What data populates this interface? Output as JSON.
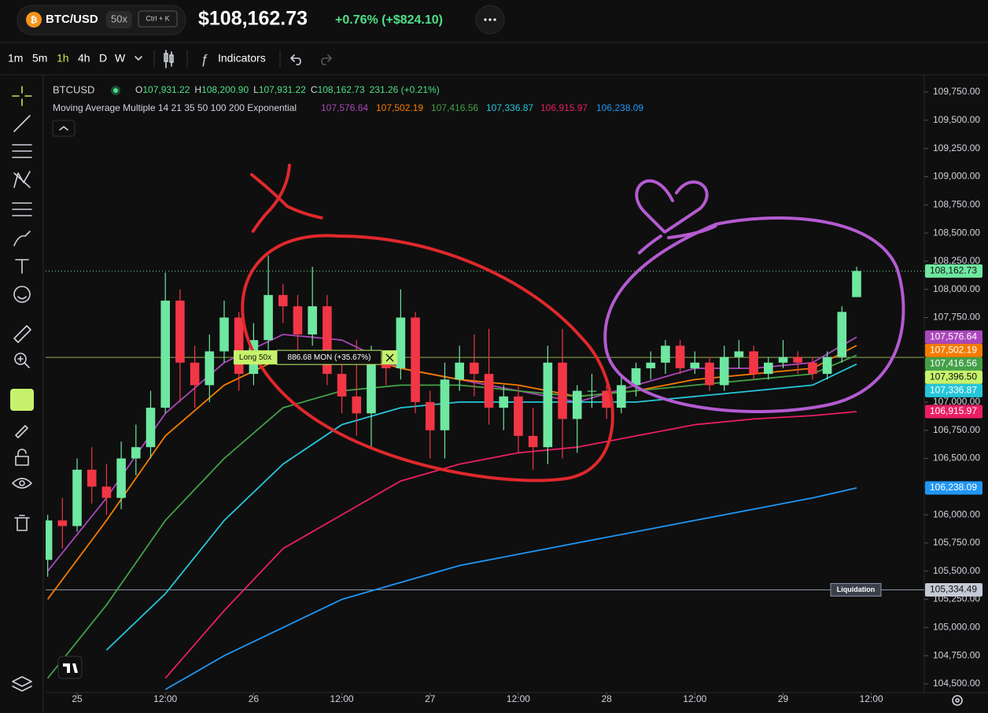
{
  "header": {
    "symbol": "BTC/USD",
    "leverage": "50x",
    "shortcut": "Ctrl + K",
    "price": "$108,162.73",
    "change": "+0.76% (+$824.10)"
  },
  "toolbar": {
    "intervals": [
      "1m",
      "5m",
      "1h",
      "4h",
      "D",
      "W"
    ],
    "indicators": "Indicators"
  },
  "legend": {
    "symbol": "BTCUSD",
    "ohlc": [
      {
        "label": "O",
        "value": "107,931.22"
      },
      {
        "label": "H",
        "value": "108,200.90"
      },
      {
        "label": "L",
        "value": "107,931.22"
      },
      {
        "label": "C",
        "value": "108,162.73"
      }
    ],
    "change": "231.26 (+0.21%)",
    "indicator": "Moving Average Multiple 14 21 35 50 100 200 Exponential"
  },
  "position": {
    "side": "Long 50x",
    "pnl": "886.68 MON (+35.67%)",
    "price": 107396.5,
    "price_label": "107,396.50",
    "color": "#c6f26b"
  },
  "liquidation": {
    "label": "Liquidation",
    "price": 105334.49,
    "price_label": "105,334.49"
  },
  "chart_data": {
    "type": "candlestick",
    "x": [
      -4,
      -2,
      0,
      2,
      4,
      6,
      8,
      10,
      12,
      14,
      16,
      18,
      20,
      22,
      24,
      26,
      28,
      30,
      32,
      34,
      36,
      38,
      40,
      42,
      44,
      46,
      48,
      50,
      52,
      54,
      56,
      58,
      60,
      62,
      64,
      66,
      68,
      70,
      72,
      74,
      76,
      78,
      80,
      82,
      84,
      86,
      88,
      90,
      92,
      94,
      96,
      98,
      100,
      102,
      104,
      106
    ],
    "open": [
      105600,
      105950,
      105900,
      106400,
      106250,
      106150,
      106500,
      106600,
      106950,
      107900,
      107350,
      107150,
      107450,
      107750,
      107250,
      107550,
      107950,
      107850,
      107600,
      107850,
      107250,
      107050,
      106900,
      107350,
      107300,
      107750,
      107000,
      106750,
      107200,
      107350,
      107250,
      106950,
      107050,
      106700,
      106600,
      107350,
      106850,
      107100,
      107100,
      106950,
      107150,
      107300,
      107350,
      107500,
      107300,
      107350,
      107150,
      107400,
      107450,
      107250,
      107350,
      107400,
      107350,
      107250,
      107400,
      107931.22
    ],
    "high": [
      106000,
      106150,
      106500,
      106600,
      106450,
      106650,
      106800,
      107100,
      108150,
      108000,
      107500,
      107600,
      107900,
      107800,
      107700,
      108300,
      108050,
      107950,
      108200,
      107950,
      107400,
      107550,
      107500,
      107450,
      108000,
      107800,
      107100,
      107350,
      107500,
      107600,
      107650,
      107150,
      107150,
      106950,
      107500,
      107650,
      107150,
      107250,
      107150,
      107250,
      107350,
      107450,
      107550,
      107550,
      107450,
      107400,
      107500,
      107550,
      107500,
      107400,
      107550,
      107450,
      107400,
      107450,
      107850,
      108200.9
    ],
    "low": [
      105450,
      105700,
      105850,
      106100,
      106000,
      106050,
      106350,
      106500,
      106900,
      107000,
      106950,
      107000,
      107350,
      107100,
      107150,
      107450,
      107700,
      107450,
      107500,
      107150,
      106900,
      106700,
      106600,
      107150,
      107200,
      106900,
      106500,
      106500,
      107100,
      107050,
      106800,
      106750,
      106550,
      106400,
      106450,
      106500,
      106550,
      106950,
      106850,
      106900,
      107050,
      107200,
      107250,
      107250,
      107250,
      107100,
      107100,
      107300,
      107200,
      107200,
      107300,
      107250,
      107200,
      107200,
      107350,
      107931.22
    ],
    "close": [
      105950,
      105900,
      106400,
      106250,
      106150,
      106500,
      106600,
      106950,
      107900,
      107350,
      107150,
      107450,
      107750,
      107250,
      107550,
      107950,
      107850,
      107600,
      107850,
      107250,
      107050,
      106900,
      107350,
      107300,
      107750,
      107000,
      106750,
      107200,
      107350,
      107250,
      106950,
      107050,
      106700,
      106600,
      107350,
      106850,
      107100,
      107100,
      106950,
      107150,
      107300,
      107350,
      107500,
      107300,
      107350,
      107150,
      107400,
      107450,
      107250,
      107350,
      107400,
      107350,
      107250,
      107400,
      107800,
      108162.73
    ],
    "last_label": "108,162.73",
    "up_color": "#6ee7a0",
    "down_color": "#f23645",
    "series": [
      {
        "color": "#ab47bc",
        "x": [
          -4,
          4,
          12,
          20,
          28,
          36,
          44,
          52,
          60,
          68,
          76,
          84,
          92,
          100,
          106
        ],
        "values": [
          105500,
          106150,
          106900,
          107350,
          107600,
          107550,
          107300,
          107200,
          107100,
          107000,
          107150,
          107300,
          107300,
          107350,
          107576.64
        ],
        "last_label": "107,576.64"
      },
      {
        "color": "#f57c00",
        "x": [
          -4,
          4,
          12,
          20,
          28,
          36,
          44,
          52,
          60,
          68,
          76,
          84,
          92,
          100,
          106
        ],
        "values": [
          105250,
          105950,
          106700,
          107150,
          107400,
          107450,
          107300,
          107200,
          107150,
          107050,
          107100,
          107200,
          107250,
          107300,
          107502.19
        ],
        "last_label": "107,502.19"
      },
      {
        "color": "#43a047",
        "x": [
          -4,
          4,
          12,
          20,
          28,
          36,
          44,
          52,
          60,
          68,
          76,
          84,
          92,
          100,
          106
        ],
        "values": [
          104550,
          105200,
          105950,
          106500,
          106950,
          107100,
          107150,
          107150,
          107100,
          107050,
          107100,
          107150,
          107200,
          107250,
          107416.56
        ],
        "last_label": "107,416.56"
      },
      {
        "color": "#26c6da",
        "x": [
          -4,
          4,
          12,
          20,
          28,
          36,
          44,
          52,
          60,
          68,
          76,
          84,
          92,
          100,
          106
        ],
        "values": [
          null,
          104800,
          105300,
          105950,
          106450,
          106800,
          106950,
          107000,
          107000,
          107000,
          107000,
          107050,
          107100,
          107150,
          107336.87
        ],
        "last_label": "107,336.87"
      },
      {
        "color": "#e91e63",
        "x": [
          -4,
          4,
          12,
          20,
          28,
          36,
          44,
          52,
          60,
          68,
          76,
          84,
          92,
          100,
          106
        ],
        "values": [
          null,
          null,
          104550,
          105150,
          105700,
          106000,
          106300,
          106450,
          106550,
          106600,
          106700,
          106800,
          106850,
          106880,
          106915.97
        ],
        "last_label": "106,915.97"
      },
      {
        "color": "#2196f3",
        "x": [
          -4,
          4,
          12,
          20,
          28,
          36,
          44,
          52,
          60,
          68,
          76,
          84,
          92,
          100,
          106
        ],
        "values": [
          null,
          null,
          104450,
          104750,
          105000,
          105250,
          105400,
          105550,
          105650,
          105750,
          105850,
          105950,
          106050,
          106150,
          106238.09
        ],
        "last_label": "106,238.09"
      }
    ],
    "xlim": [
      -4.28,
      115.2
    ],
    "xticks": [
      {
        "value": 0,
        "label": "25"
      },
      {
        "value": 12,
        "label": "12:00"
      },
      {
        "value": 24,
        "label": "26"
      },
      {
        "value": 36,
        "label": "12:00"
      },
      {
        "value": 48,
        "label": "27"
      },
      {
        "value": 60,
        "label": "12:00"
      },
      {
        "value": 72,
        "label": "28"
      },
      {
        "value": 84,
        "label": "12:00"
      },
      {
        "value": 96,
        "label": "29"
      },
      {
        "value": 108,
        "label": "12:00"
      }
    ],
    "ylim": [
      104423,
      109904
    ],
    "yticks": [
      {
        "value": 104500,
        "label": "104,500.00"
      },
      {
        "value": 104750,
        "label": "104,750.00"
      },
      {
        "value": 105000,
        "label": "105,000.00"
      },
      {
        "value": 105250,
        "label": "105,250.00"
      },
      {
        "value": 105500,
        "label": "105,500.00"
      },
      {
        "value": 105750,
        "label": "105,750.00"
      },
      {
        "value": 106000,
        "label": "106,000.00"
      },
      {
        "value": 106250,
        "label": "106,250.00"
      },
      {
        "value": 106500,
        "label": "106,500.00"
      },
      {
        "value": 106750,
        "label": "106,750.00"
      },
      {
        "value": 107000,
        "label": "107,000.00"
      },
      {
        "value": 107250,
        "label": "107,250.00"
      },
      {
        "value": 107500,
        "label": "107,500.00"
      },
      {
        "value": 107750,
        "label": "107,750.00"
      },
      {
        "value": 108000,
        "label": "108,000.00"
      },
      {
        "value": 108250,
        "label": "108,250.00"
      },
      {
        "value": 108500,
        "label": "108,500.00"
      },
      {
        "value": 108750,
        "label": "108,750.00"
      },
      {
        "value": 109000,
        "label": "109,000.00"
      },
      {
        "value": 109250,
        "label": "109,250.00"
      },
      {
        "value": 109500,
        "label": "109,500.00"
      },
      {
        "value": 109750,
        "label": "109,750.00"
      }
    ]
  }
}
